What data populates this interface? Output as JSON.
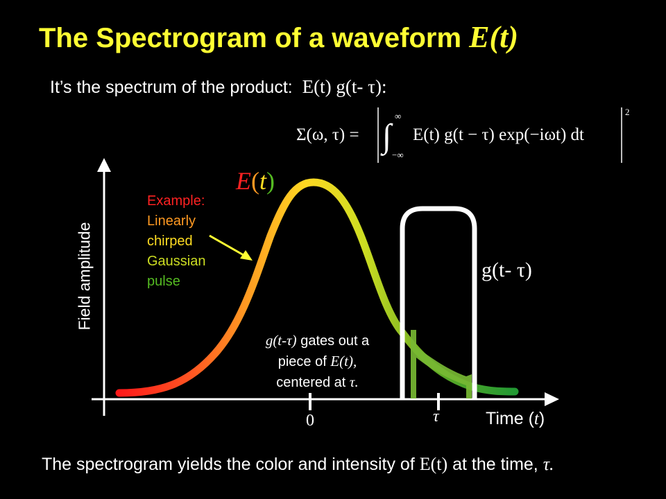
{
  "title": {
    "text": "The Spectrogram of a waveform",
    "math": "E(t)"
  },
  "subtitle": {
    "text": "It’s the spectrum of the product:",
    "math": "E(t) g(t- τ):"
  },
  "formula": {
    "lhs": "Σ(ω, τ) =",
    "integrand": "E(t) g(t − τ) exp(−iωt) dt",
    "upper_limit": "∞",
    "lower_limit": "−∞",
    "exponent": "2"
  },
  "example": {
    "line1": "Example:",
    "line2": "Linearly",
    "line3": "chirped",
    "line4": "Gaussian",
    "line5": "pulse"
  },
  "curve_label": {
    "E": "E",
    "open": "(",
    "t": "t",
    "close": ")"
  },
  "gate_label": "g(t- τ)",
  "y_axis_label": "Field amplitude",
  "x_axis_label": {
    "text": "Time (",
    "math": "t",
    "close": ")"
  },
  "ticks": {
    "zero": "0",
    "tau": "τ"
  },
  "note": {
    "line1_math": "g(t-τ)",
    "line1_text": " gates out a",
    "line2_text": "piece of ",
    "line2_math": "E(t),",
    "line3_text": "centered at ",
    "line3_math": "τ."
  },
  "bottom_text": {
    "before": "The spectrogram yields the color and intensity of ",
    "math": "E(t)",
    "after": " at the time, ",
    "tau": "τ."
  },
  "colors": {
    "title": "#ffff33",
    "red": "#ff2222",
    "orange": "#ff9922",
    "yellow": "#ffdd22",
    "lime": "#ccdd22",
    "green": "#55aa22",
    "dark_green": "#229933",
    "gate": "#ffffff"
  }
}
